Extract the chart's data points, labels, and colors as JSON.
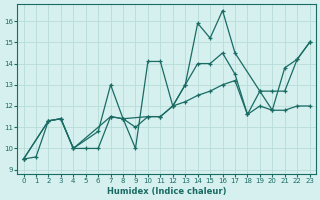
{
  "xlabel": "Humidex (Indice chaleur)",
  "ylabel": "",
  "bg_color": "#d5f0ee",
  "grid_color": "#b8dcd8",
  "line_color": "#1a6b64",
  "xlim": [
    -0.5,
    23.5
  ],
  "ylim": [
    8.8,
    16.8
  ],
  "yticks": [
    9,
    10,
    11,
    12,
    13,
    14,
    15,
    16
  ],
  "xticks": [
    0,
    1,
    2,
    3,
    4,
    5,
    6,
    7,
    8,
    9,
    10,
    11,
    12,
    13,
    14,
    15,
    16,
    17,
    18,
    19,
    20,
    21,
    22,
    23
  ],
  "series": [
    {
      "x": [
        0,
        2,
        3,
        4,
        6,
        7,
        8,
        9,
        10,
        11,
        12,
        13,
        14,
        15,
        16,
        17,
        19,
        20,
        21,
        22,
        23
      ],
      "y": [
        9.5,
        11.3,
        11.4,
        10.0,
        10.8,
        13.0,
        11.4,
        10.0,
        14.1,
        14.1,
        12.0,
        13.0,
        15.9,
        15.2,
        16.5,
        14.5,
        12.7,
        11.8,
        13.8,
        14.2,
        15.0
      ]
    },
    {
      "x": [
        0,
        2,
        3,
        4,
        7,
        8,
        10,
        11,
        12,
        13,
        14,
        15,
        16,
        17,
        18,
        19,
        20,
        21,
        22,
        23
      ],
      "y": [
        9.5,
        11.3,
        11.4,
        10.0,
        11.5,
        11.4,
        11.5,
        11.5,
        12.0,
        13.0,
        14.0,
        14.0,
        14.5,
        13.5,
        11.6,
        12.7,
        12.7,
        12.7,
        14.2,
        15.0
      ]
    },
    {
      "x": [
        0,
        1,
        2,
        3,
        4,
        5,
        6,
        7,
        8,
        9,
        10,
        11,
        12,
        13,
        14,
        15,
        16,
        17,
        18,
        19,
        20,
        21,
        22,
        23
      ],
      "y": [
        9.5,
        9.6,
        11.3,
        11.4,
        10.0,
        10.0,
        10.0,
        11.5,
        11.4,
        11.0,
        11.5,
        11.5,
        12.0,
        12.2,
        12.5,
        12.7,
        13.0,
        13.2,
        11.6,
        12.0,
        11.8,
        11.8,
        12.0,
        12.0
      ]
    }
  ]
}
